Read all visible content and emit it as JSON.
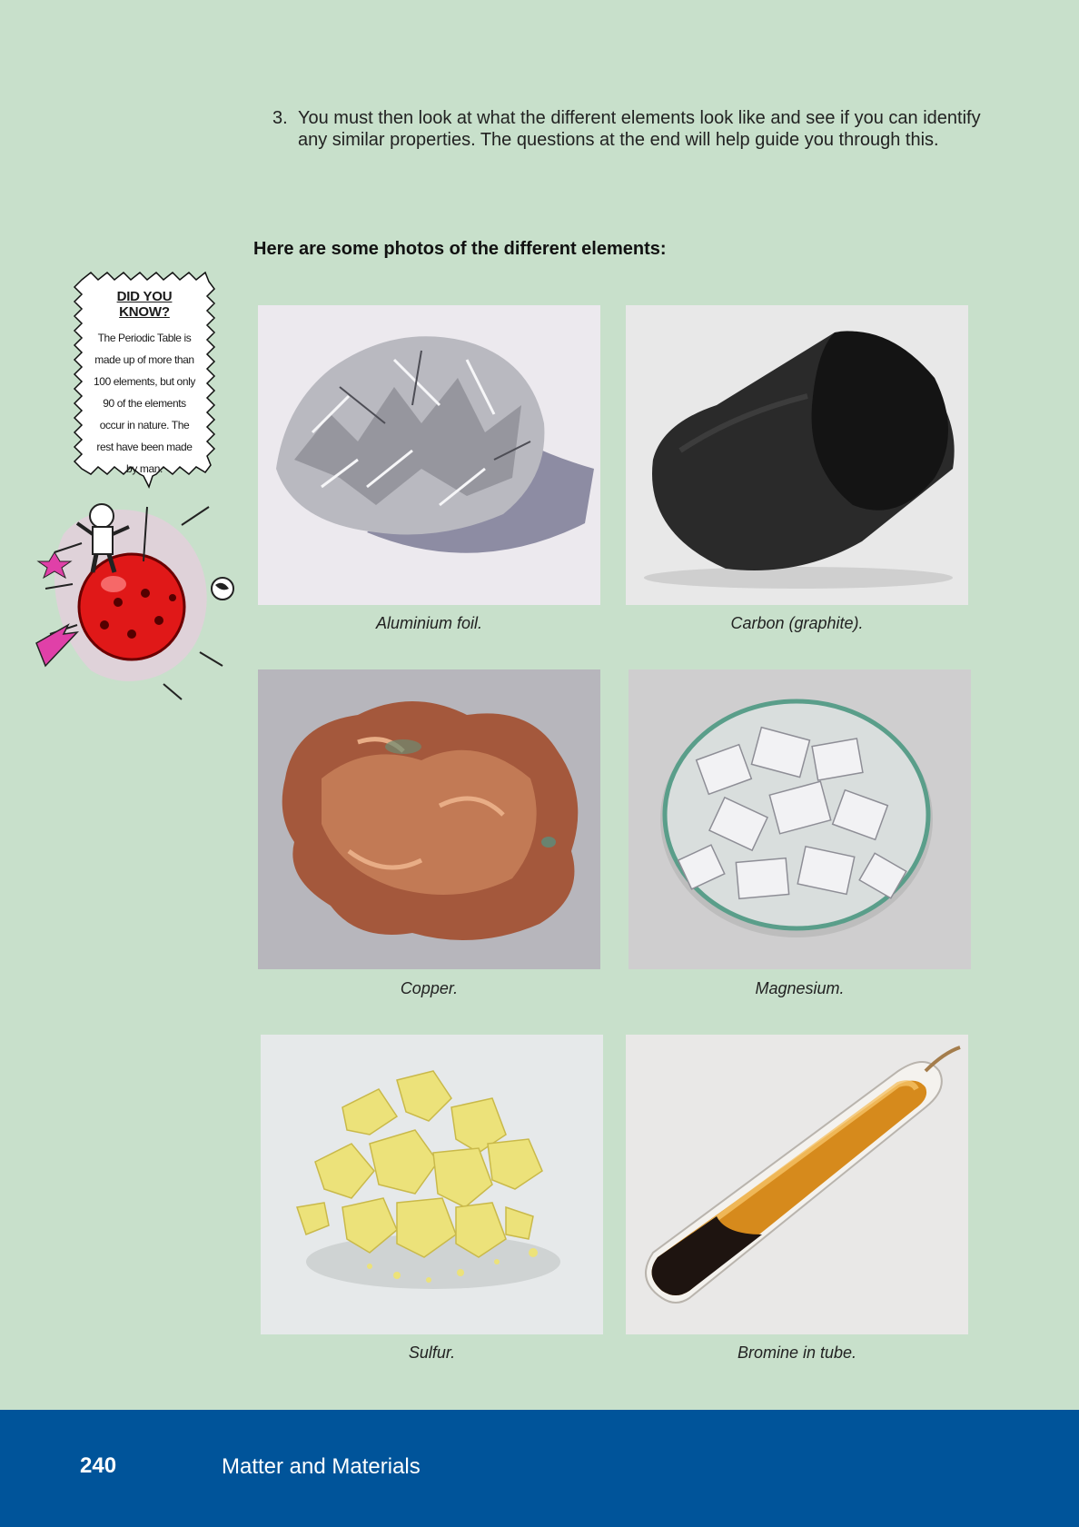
{
  "instruction": {
    "number": "3.",
    "text": "You must then look at what the different elements look like and see if you can identify any similar properties. The questions at the end will help guide you through this."
  },
  "section_heading": "Here are some photos of the different elements:",
  "did_you_know": {
    "title": "DID YOU KNOW?",
    "body": "The Periodic Table is made up of more than 100 elements, but only 90 of the elements occur in nature. The rest have been made by man."
  },
  "photos": [
    {
      "caption": "Aluminium foil.",
      "icon": "aluminium-foil-photo"
    },
    {
      "caption": "Carbon (graphite).",
      "icon": "graphite-photo"
    },
    {
      "caption": "Copper.",
      "icon": "copper-photo"
    },
    {
      "caption": "Magnesium.",
      "icon": "magnesium-photo"
    },
    {
      "caption": "Sulfur.",
      "icon": "sulfur-photo"
    },
    {
      "caption": "Bromine in tube.",
      "icon": "bromine-tube-photo"
    }
  ],
  "footer": {
    "page_number": "240",
    "title": "Matter and Materials"
  },
  "colors": {
    "page_background": "#c8e0cb",
    "footer_background": "#00549a",
    "footer_text": "#ffffff"
  }
}
